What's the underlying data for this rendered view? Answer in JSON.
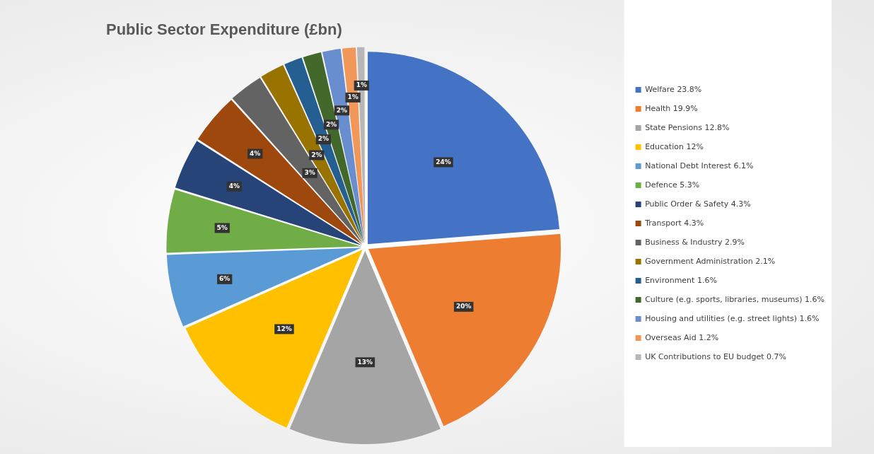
{
  "chart_data": {
    "type": "pie",
    "title": "Public Sector Expenditure (£bn)",
    "categories": [
      "Welfare 23.8%",
      "Health 19.9%",
      "State Pensions 12.8%",
      "Education 12%",
      "National Debt Interest 6.1%",
      "Defence 5.3%",
      "Public Order & Safety 4.3%",
      "Transport 4.3%",
      "Business & Industry 2.9%",
      "Government Administration 2.1%",
      "Environment 1.6%",
      "Culture (e.g. sports, libraries, museums) 1.6%",
      "Housing and utilities (e.g. street lights) 1.6%",
      "Overseas Aid 1.2%",
      "UK Contributions to EU budget 0.7%"
    ],
    "values": [
      23.8,
      19.9,
      12.8,
      12,
      6.1,
      5.3,
      4.3,
      4.3,
      2.9,
      2.1,
      1.6,
      1.6,
      1.6,
      1.2,
      0.7
    ],
    "colors": [
      "#4472c4",
      "#ed7d31",
      "#a5a5a5",
      "#ffc000",
      "#5b9bd5",
      "#70ad47",
      "#264478",
      "#9e480e",
      "#636363",
      "#997300",
      "#255e91",
      "#43682b",
      "#698ed0",
      "#f1975a",
      "#b7b7b7"
    ],
    "value_labels": [
      "24%",
      "20%",
      "13%",
      "12%",
      "6%",
      "5%",
      "4%",
      "4%",
      "3%",
      "2%",
      "2%",
      "2%",
      "2%",
      "1%",
      "1%"
    ],
    "legend": "right"
  }
}
